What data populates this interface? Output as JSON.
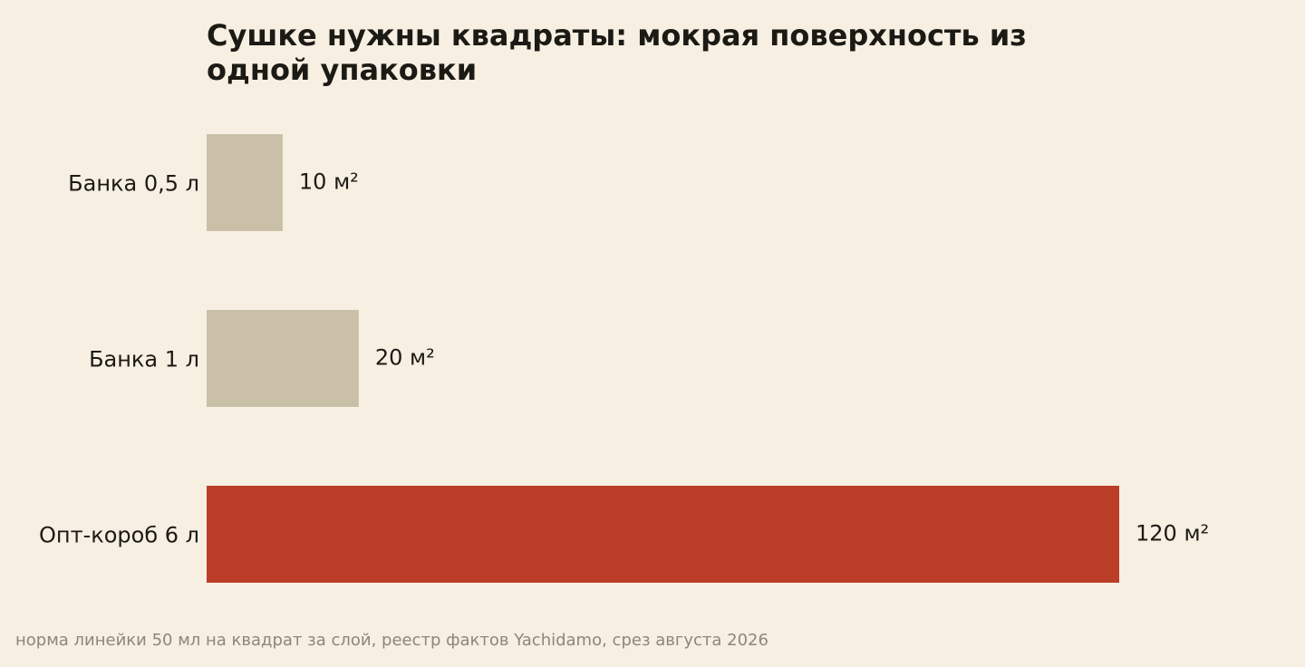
{
  "chart_data": {
    "type": "bar",
    "orientation": "horizontal",
    "title": "Сушке нужны квадраты: мокрая поверхность из одной упаковки",
    "categories": [
      "Банка 0,5 л",
      "Банка 1 л",
      "Опт-короб 6 л"
    ],
    "values": [
      10,
      20,
      120
    ],
    "value_labels": [
      "10 м²",
      "20 м²",
      "120 м²"
    ],
    "bar_colors": [
      "#c9c0a7",
      "#c9c0a7",
      "#bc3d27"
    ],
    "xlim": [
      0,
      120
    ],
    "grid": false,
    "legend": "none",
    "footnote": "норма линейки 50 мл на квадрат за слой, реестр фактов Yachidamo, срез августа 2026"
  },
  "colors": {
    "background": "#f6efe2",
    "text": "#1c1a14",
    "footnote": "#8c877a",
    "muted_bar": "#c9c0a7",
    "highlight_bar": "#bc3d27"
  }
}
